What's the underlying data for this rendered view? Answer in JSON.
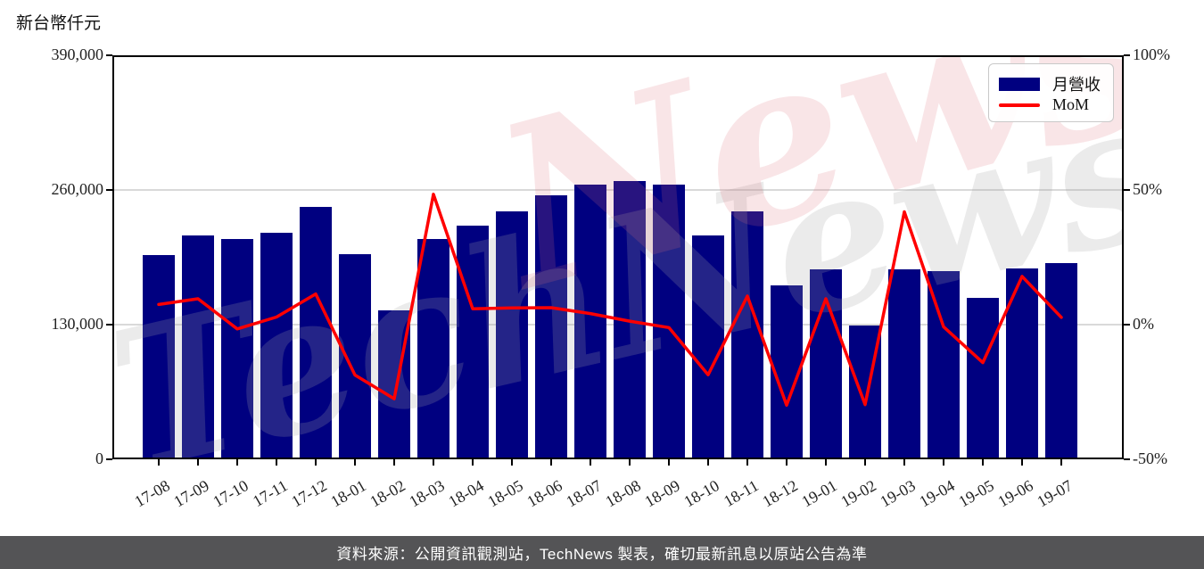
{
  "title": "新台幣仟元",
  "watermark": {
    "gray_text": "TechNews",
    "pink_text": "News"
  },
  "legend": {
    "items": [
      {
        "label": "月營收",
        "type": "bar",
        "color": "#000080"
      },
      {
        "label": "MoM",
        "type": "line",
        "color": "#ff0000"
      }
    ]
  },
  "footer": {
    "text": "資料來源：公開資訊觀測站，TechNews 製表，確切最新訊息以原站公告為準",
    "bg": "#545456",
    "color": "#ffffff"
  },
  "colors": {
    "bar": "#000080",
    "line": "#ff0000",
    "grid": "#d9d9d9",
    "frame": "#000000"
  },
  "chart_data": {
    "type": "bar",
    "title": "新台幣仟元",
    "categories": [
      "17-08",
      "17-09",
      "17-10",
      "17-11",
      "17-12",
      "18-01",
      "18-02",
      "18-03",
      "18-04",
      "18-05",
      "18-06",
      "18-07",
      "18-08",
      "18-09",
      "18-10",
      "18-11",
      "18-12",
      "19-01",
      "19-02",
      "19-03",
      "19-04",
      "19-05",
      "19-06",
      "19-07"
    ],
    "series": [
      {
        "name": "月營收",
        "type": "bar",
        "axis": "left",
        "color": "#000080",
        "values": [
          197000,
          216000,
          212500,
          218500,
          243500,
          198000,
          143500,
          213000,
          225500,
          239500,
          254500,
          265000,
          268500,
          265500,
          216000,
          239000,
          167500,
          183500,
          129000,
          183000,
          181500,
          156000,
          184000,
          189000
        ]
      },
      {
        "name": "MoM",
        "type": "line",
        "axis": "right",
        "color": "#ff0000",
        "values": [
          7.5,
          9.6,
          -1.6,
          2.8,
          11.4,
          -18.7,
          -27.5,
          48.4,
          5.9,
          6.2,
          6.3,
          4.1,
          1.3,
          -1.1,
          -18.6,
          10.6,
          -29.9,
          9.6,
          -29.7,
          41.9,
          -0.8,
          -14.1,
          17.9,
          2.7
        ]
      }
    ],
    "left_axis": {
      "label": "新台幣仟元",
      "tick_labels": [
        "390,000",
        "260,000",
        "130,000",
        "0"
      ],
      "tick_values": [
        390000,
        260000,
        130000,
        0
      ],
      "range": [
        0,
        390000
      ]
    },
    "right_axis": {
      "tick_labels": [
        "100%",
        "50%",
        "0%",
        "-50%"
      ],
      "tick_values": [
        100,
        50,
        0,
        -50
      ],
      "range": [
        -50,
        100
      ]
    },
    "grid": "horizontal",
    "legend_position": "top-right"
  }
}
